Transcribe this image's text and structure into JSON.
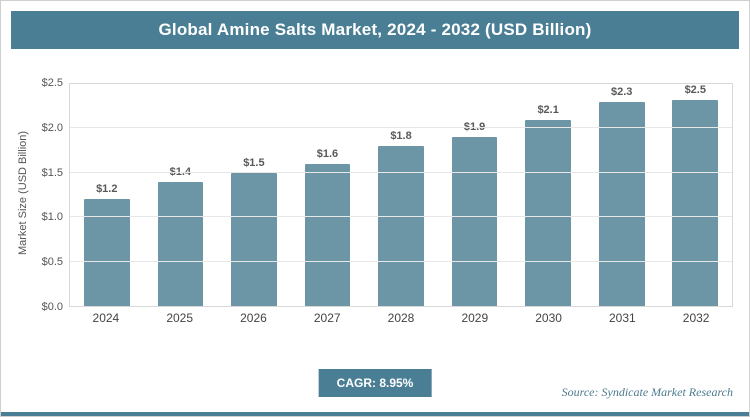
{
  "header": {
    "title": "Global Amine Salts Market, 2024 - 2032 (USD Billion)"
  },
  "chart_data": {
    "type": "bar",
    "title": "Global Amine Salts Market, 2024 - 2032 (USD Billion)",
    "categories": [
      "2024",
      "2025",
      "2026",
      "2027",
      "2028",
      "2029",
      "2030",
      "2031",
      "2032"
    ],
    "values": [
      1.2,
      1.4,
      1.5,
      1.6,
      1.8,
      1.9,
      2.1,
      2.3,
      2.5
    ],
    "value_labels": [
      "$1.2",
      "$1.4",
      "$1.5",
      "$1.6",
      "$1.8",
      "$1.9",
      "$2.1",
      "$2.3",
      "$2.5"
    ],
    "xlabel": "",
    "ylabel": "Market Size (USD Billion)",
    "ylim": [
      0,
      2.5
    ],
    "yticks": [
      0,
      0.5,
      1.0,
      1.5,
      2.0,
      2.5
    ],
    "ytick_labels": [
      "$0.0",
      "$0.5",
      "$1.0",
      "$1.5",
      "$2.0",
      "$2.5"
    ],
    "grid": true,
    "legend": false,
    "bar_color": "#6c95a5"
  },
  "footer": {
    "cagr_label": "CAGR: 8.95%",
    "source": "Source: Syndicate Market Research"
  },
  "colors": {
    "accent": "#4a7e94",
    "bar": "#6c95a5",
    "grid": "#e7e7e7",
    "text_muted": "#595959"
  }
}
